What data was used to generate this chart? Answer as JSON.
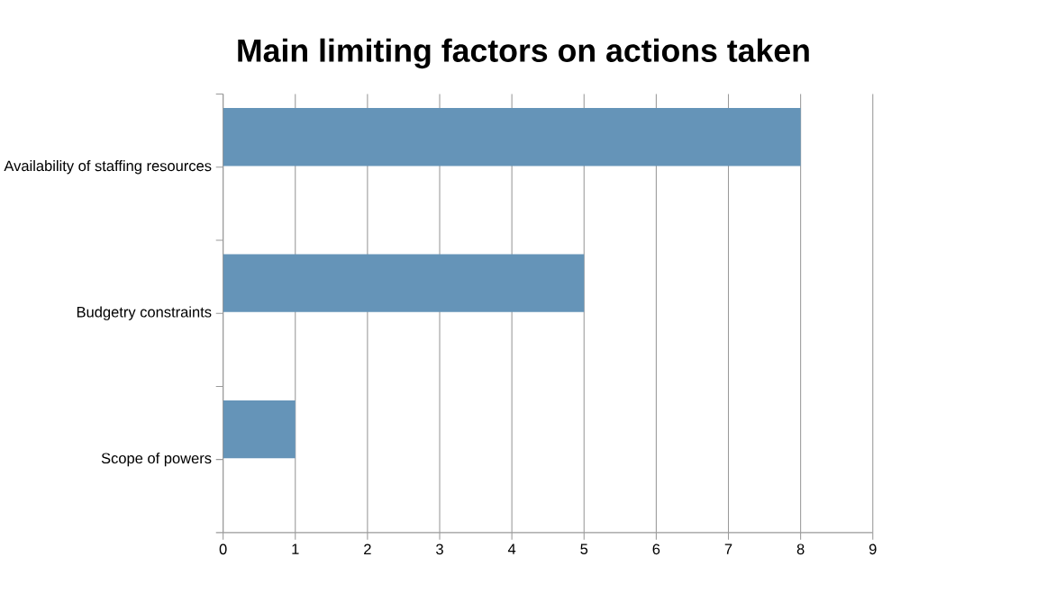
{
  "chart_data": {
    "type": "bar",
    "orientation": "horizontal",
    "title": "Main limiting factors on actions taken",
    "categories": [
      "Availability of staffing resources",
      "Budgetry constraints",
      "Scope of powers"
    ],
    "values": [
      8,
      5,
      1
    ],
    "color": "#6594b8",
    "xlim": [
      0,
      9
    ],
    "xticks": [
      0,
      1,
      2,
      3,
      4,
      5,
      6,
      7,
      8,
      9
    ],
    "grid": "x"
  }
}
